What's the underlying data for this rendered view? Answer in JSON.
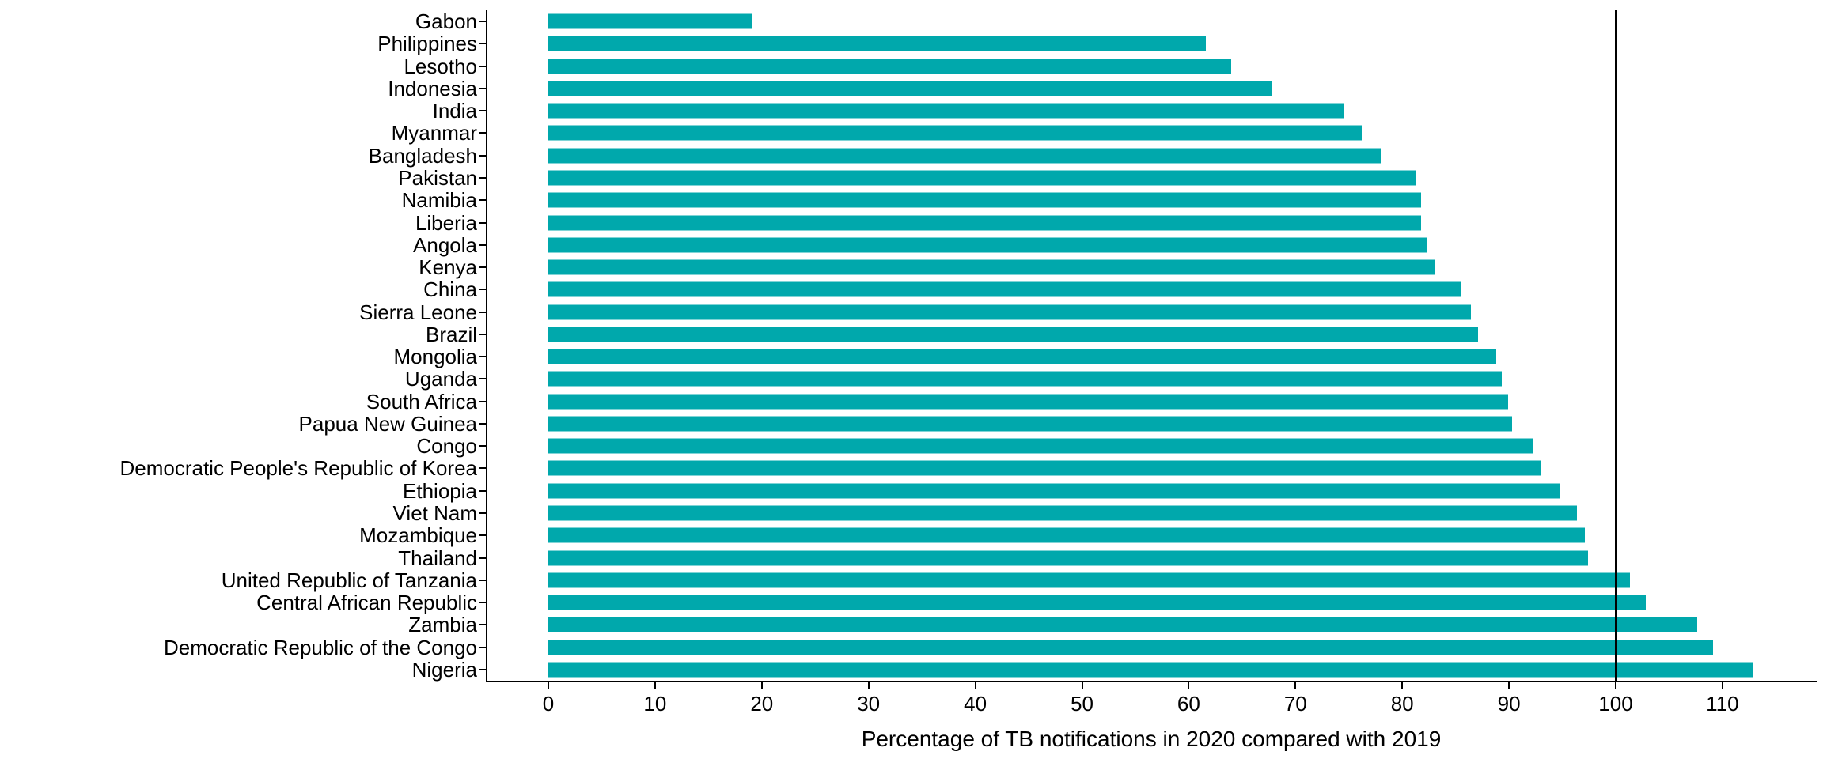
{
  "chart_data": {
    "type": "bar",
    "orientation": "horizontal",
    "title": "",
    "xlabel": "Percentage of TB notifications in 2020 compared with 2019",
    "ylabel": "",
    "categories": [
      "Gabon",
      "Philippines",
      "Lesotho",
      "Indonesia",
      "India",
      "Myanmar",
      "Bangladesh",
      "Pakistan",
      "Namibia",
      "Liberia",
      "Angola",
      "Kenya",
      "China",
      "Sierra Leone",
      "Brazil",
      "Mongolia",
      "Uganda",
      "South Africa",
      "Papua New Guinea",
      "Congo",
      "Democratic People's Republic of Korea",
      "Ethiopia",
      "Viet Nam",
      "Mozambique",
      "Thailand",
      "United Republic of Tanzania",
      "Central African Republic",
      "Zambia",
      "Democratic Republic of the Congo",
      "Nigeria"
    ],
    "values": [
      19.1,
      61.6,
      64.0,
      67.8,
      74.6,
      76.2,
      78.0,
      81.3,
      81.8,
      81.8,
      82.3,
      83.0,
      85.5,
      86.4,
      87.1,
      88.8,
      89.3,
      89.9,
      90.3,
      92.2,
      93.0,
      94.8,
      96.4,
      97.1,
      97.4,
      101.3,
      102.8,
      107.6,
      109.1,
      112.8
    ],
    "x_ticks": [
      0,
      10,
      20,
      30,
      40,
      50,
      60,
      70,
      80,
      90,
      100,
      110
    ],
    "xlim": [
      -5.65,
      118.65
    ],
    "reference_line_x": 100,
    "bar_color": "#00A8AC",
    "axis_color": "#000000",
    "background_color": "#FFFFFF",
    "grid": false,
    "legend": false
  }
}
